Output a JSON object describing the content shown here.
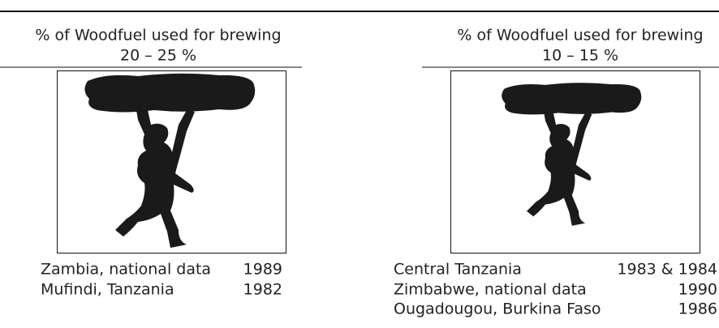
{
  "panels": [
    {
      "heading": "% of Woodfuel used for brewing",
      "range": "20 – 25 %",
      "rows": [
        [
          "Zambia, national data",
          "1989"
        ],
        [
          "Mufindi, Tanzania",
          "1982"
        ]
      ]
    },
    {
      "heading": "% of Woodfuel used for brewing",
      "range": "10 – 15 %",
      "rows": [
        [
          "Central Tanzania",
          "1983 & 1984"
        ],
        [
          "Zimbabwe, national data",
          "1990"
        ],
        [
          "Ougadougou, Burkina Faso",
          "1986"
        ]
      ]
    }
  ]
}
